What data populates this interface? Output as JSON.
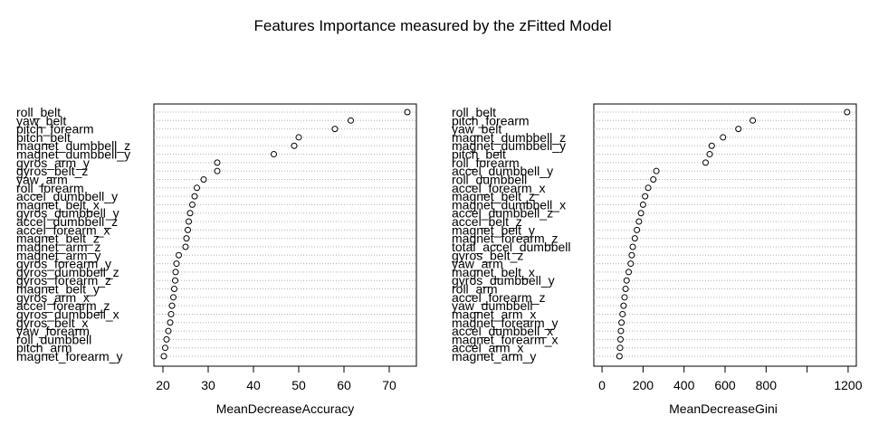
{
  "title": "Features Importance measured by the zFitted Model",
  "chart_data": [
    {
      "type": "scatter",
      "subtype": "dotchart",
      "xlabel": "MeanDecreaseAccuracy",
      "xlim": [
        18,
        76
      ],
      "xticks": [
        20,
        30,
        40,
        50,
        60,
        70
      ],
      "grid": true,
      "categories": [
        "roll_belt",
        "yaw_belt",
        "pitch_forearm",
        "pitch_belt",
        "magnet_dumbbell_z",
        "magnet_dumbbell_y",
        "gyros_arm_y",
        "gyros_belt_z",
        "yaw_arm",
        "roll_forearm",
        "accel_dumbbell_y",
        "magnet_belt_x",
        "gyros_dumbbell_y",
        "accel_dumbbell_z",
        "accel_forearm_x",
        "magnet_belt_z",
        "magnet_arm_z",
        "magnet_arm_y",
        "gyros_forearm_y",
        "gyros_dumbbell_z",
        "gyros_forearm_z",
        "magnet_belt_y",
        "gyros_arm_x",
        "accel_forearm_z",
        "gyros_dumbbell_x",
        "gyros_belt_x",
        "yaw_forearm",
        "roll_dumbbell",
        "pitch_arm",
        "magnet_forearm_y"
      ],
      "values": [
        74,
        61.5,
        58,
        50,
        49,
        44.5,
        32,
        32,
        29,
        27.5,
        27,
        26.5,
        26,
        25.7,
        25.5,
        25.2,
        25,
        23.5,
        23,
        22.8,
        22.7,
        22.5,
        22.3,
        22,
        21.8,
        21.6,
        21.2,
        20.8,
        20.5,
        20.2
      ]
    },
    {
      "type": "scatter",
      "subtype": "dotchart",
      "xlabel": "MeanDecreaseGini",
      "xlim": [
        -40,
        1240
      ],
      "xticks": [
        0,
        200,
        400,
        600,
        800,
        1000,
        1200
      ],
      "xtick_labels": [
        "0",
        "200",
        "400",
        "600",
        "800",
        "",
        "1200"
      ],
      "grid": true,
      "categories": [
        "roll_belt",
        "pitch_forearm",
        "yaw_belt",
        "magnet_dumbbell_z",
        "magnet_dumbbell_y",
        "pitch_belt",
        "roll_forearm",
        "accel_dumbbell_y",
        "roll_dumbbell",
        "accel_forearm_x",
        "magnet_belt_z",
        "magnet_dumbbell_x",
        "accel_dumbbell_z",
        "accel_belt_z",
        "magnet_belt_y",
        "magnet_forearm_z",
        "total_accel_dumbbell",
        "gyros_belt_z",
        "yaw_arm",
        "magnet_belt_x",
        "gyros_dumbbell_y",
        "roll_arm",
        "accel_forearm_z",
        "yaw_dumbbell",
        "magnet_arm_x",
        "magnet_forearm_y",
        "accel_dumbbell_x",
        "magnet_forearm_x",
        "accel_arm_x",
        "magnet_arm_y"
      ],
      "values": [
        1195,
        735,
        665,
        590,
        535,
        525,
        505,
        265,
        250,
        225,
        210,
        200,
        190,
        180,
        170,
        160,
        150,
        145,
        140,
        130,
        120,
        115,
        110,
        105,
        100,
        95,
        92,
        90,
        88,
        85
      ]
    }
  ]
}
